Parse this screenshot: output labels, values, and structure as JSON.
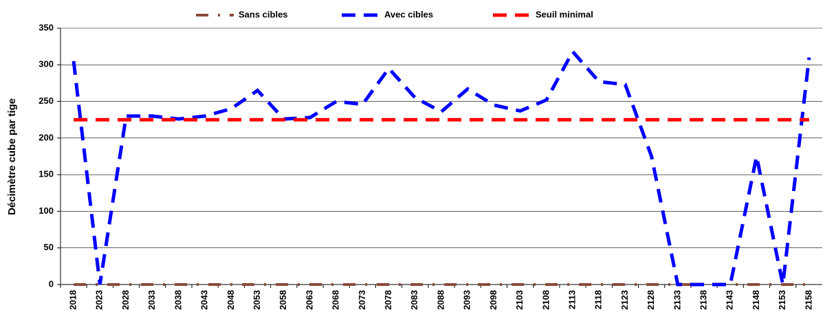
{
  "chart_data": {
    "type": "line",
    "y_label": "Décimètre cube par tige",
    "categories": [
      "2018",
      "2023",
      "2028",
      "2033",
      "2038",
      "2043",
      "2048",
      "2053",
      "2058",
      "2063",
      "2068",
      "2073",
      "2078",
      "2083",
      "2088",
      "2093",
      "2098",
      "2103",
      "2108",
      "2113",
      "2118",
      "2123",
      "2128",
      "2133",
      "2138",
      "2143",
      "2148",
      "2153",
      "2158"
    ],
    "series": [
      {
        "name": "Sans cibles",
        "color": "#8b4a3a",
        "dash": "18 14 3 14",
        "width": 4,
        "values": [
          0,
          0,
          0,
          0,
          0,
          0,
          0,
          0,
          0,
          0,
          0,
          0,
          0,
          0,
          0,
          0,
          0,
          0,
          0,
          0,
          0,
          0,
          0,
          0,
          0,
          0,
          0,
          0,
          0
        ]
      },
      {
        "name": "Avec cibles",
        "color": "#0000ff",
        "dash": "20 12",
        "width": 5,
        "values": [
          305,
          0,
          230,
          230,
          226,
          230,
          240,
          265,
          226,
          228,
          250,
          246,
          295,
          255,
          236,
          267,
          245,
          237,
          252,
          318,
          277,
          273,
          175,
          0,
          0,
          0,
          175,
          0,
          310
        ]
      },
      {
        "name": "Seuil minimal",
        "color": "#ff0000",
        "dash": "20 12",
        "width": 5,
        "values": [
          225,
          225,
          225,
          225,
          225,
          225,
          225,
          225,
          225,
          225,
          225,
          225,
          225,
          225,
          225,
          225,
          225,
          225,
          225,
          225,
          225,
          225,
          225,
          225,
          225,
          225,
          225,
          225,
          225
        ]
      }
    ],
    "ylim": [
      0,
      350
    ],
    "yticks": [
      0,
      50,
      100,
      150,
      200,
      250,
      300,
      350
    ],
    "grid": true
  }
}
